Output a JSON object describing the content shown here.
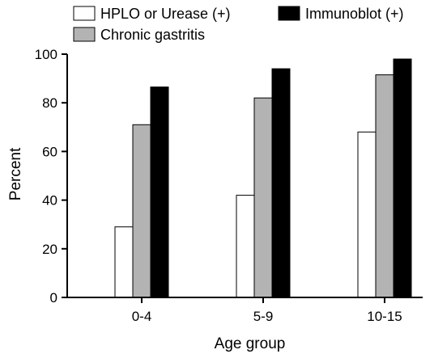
{
  "chart_data": {
    "type": "bar",
    "categories": [
      "0-4",
      "5-9",
      "10-15"
    ],
    "series": [
      {
        "name": "HPLO or Urease (+)",
        "values": [
          29,
          42,
          68
        ],
        "color": "#ffffff"
      },
      {
        "name": "Chronic gastritis",
        "values": [
          71,
          82,
          91.5
        ],
        "color": "#b3b3b3"
      },
      {
        "name": "Immunoblot (+)",
        "values": [
          86.5,
          94,
          98
        ],
        "color": "#000000"
      }
    ],
    "title": "",
    "xlabel": "Age group",
    "ylabel": "Percent",
    "ylim": [
      0,
      100
    ],
    "yticks": [
      0,
      20,
      40,
      60,
      80,
      100
    ],
    "grid": false,
    "legend_position": "top"
  }
}
